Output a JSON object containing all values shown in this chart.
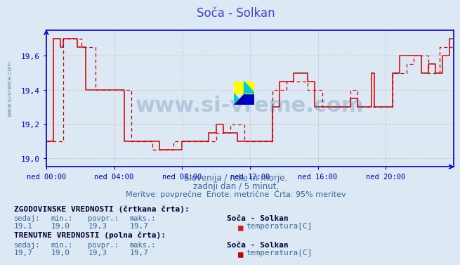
{
  "title": "Soča - Solkan",
  "title_color": "#4444cc",
  "background_color": "#dce9f5",
  "plot_bg_color": "#dce9f5",
  "xlabel_ticks": [
    "ned 00:00",
    "ned 04:00",
    "ned 08:00",
    "ned 12:00",
    "ned 16:00",
    "ned 20:00"
  ],
  "yticks": [
    19.0,
    19.2,
    19.4,
    19.6
  ],
  "ymin": 18.95,
  "ymax": 19.75,
  "xmin": 0,
  "xmax": 288,
  "line_color_dashed": "#cc0000",
  "line_color_solid": "#cc0000",
  "grid_color": "#cc9999",
  "axis_color": "#0000cc",
  "tick_color": "#336699",
  "watermark_text": "www.si-vreme.com",
  "watermark_color": "#336699",
  "watermark_alpha": 0.25,
  "sub_text1": "Slovenija / reke in morje.",
  "sub_text2": "zadnji dan / 5 minut.",
  "sub_text3": "Meritve: povprečne  Enote: metrične  Črta: 95% meritev",
  "sub_text_color": "#336699",
  "logo_colors": [
    "#ffff00",
    "#00cccc",
    "#0000cc"
  ],
  "hist_label": "ZGODOVINSKE VREDNOSTI (črtkana črta):",
  "hist_cols": [
    "sedaj:",
    "min.:",
    "povpr.:",
    "maks.:"
  ],
  "hist_vals": [
    "19,1",
    "19,0",
    "19,3",
    "19,7"
  ],
  "hist_station": "Soča - Solkan",
  "hist_series": "temperatura[C]",
  "curr_label": "TRENUTNE VREDNOSTI (polna črta):",
  "curr_cols": [
    "sedaj:",
    "min.:",
    "povpr.:",
    "maks.:"
  ],
  "curr_vals": [
    "19,7",
    "19,0",
    "19,3",
    "19,7"
  ],
  "curr_station": "Soča - Solkan",
  "curr_series": "temperatura[C]",
  "table_color": "#336699",
  "table_bold_color": "#000033"
}
